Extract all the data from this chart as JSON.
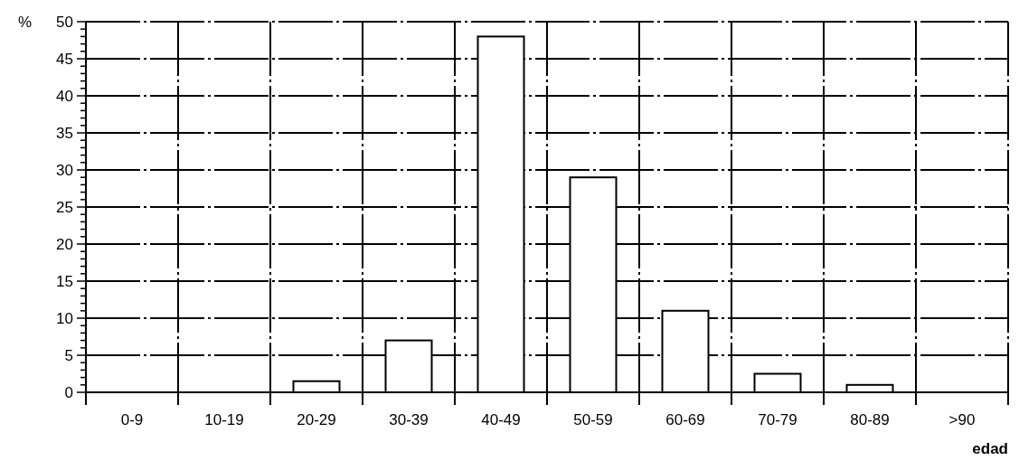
{
  "chart_data": {
    "type": "bar",
    "xlabel": "edad",
    "ylabel": "%",
    "categories": [
      "0-9",
      "10-19",
      "20-29",
      "30-39",
      "40-49",
      "50-59",
      "60-69",
      "70-79",
      "80-89",
      ">90"
    ],
    "values": [
      0,
      0,
      1.5,
      7,
      48,
      29,
      11,
      2.5,
      1,
      0
    ],
    "color": "#ffffff",
    "ylim": [
      0,
      50
    ],
    "yticks": [
      0,
      {
        "value": 1,
        "label": null
      },
      {
        "value": 2,
        "label": null
      },
      {
        "value": 3,
        "label": null
      },
      {
        "value": 4,
        "label": null
      },
      5,
      {
        "value": 6,
        "label": null
      },
      {
        "value": 7,
        "label": null
      },
      {
        "value": 8,
        "label": null
      },
      {
        "value": 9,
        "label": null
      },
      10,
      {
        "value": 11,
        "label": null
      },
      {
        "value": 12,
        "label": null
      },
      {
        "value": 13,
        "label": null
      },
      {
        "value": 14,
        "label": null
      },
      15,
      {
        "value": 16,
        "label": null
      },
      {
        "value": 17,
        "label": null
      },
      {
        "value": 18,
        "label": null
      },
      {
        "value": 19,
        "label": null
      },
      20,
      {
        "value": 21,
        "label": null
      },
      {
        "value": 22,
        "label": null
      },
      {
        "value": 23,
        "label": null
      },
      {
        "value": 24,
        "label": null
      },
      25,
      {
        "value": 26,
        "label": null
      },
      {
        "value": 27,
        "label": null
      },
      {
        "value": 28,
        "label": null
      },
      {
        "value": 29,
        "label": null
      },
      30,
      {
        "value": 31,
        "label": null
      },
      {
        "value": 32,
        "label": null
      },
      {
        "value": 33,
        "label": null
      },
      {
        "value": 34,
        "label": null
      },
      35,
      {
        "value": 36,
        "label": null
      },
      {
        "value": 37,
        "label": null
      },
      {
        "value": 38,
        "label": null
      },
      {
        "value": 39,
        "label": null
      },
      40,
      {
        "value": 41,
        "label": null
      },
      {
        "value": 42,
        "label": null
      },
      {
        "value": 43,
        "label": null
      },
      {
        "value": 44,
        "label": null
      },
      45,
      {
        "value": 46,
        "label": null
      },
      {
        "value": 47,
        "label": null
      },
      {
        "value": 48,
        "label": null
      },
      {
        "value": 49,
        "label": null
      },
      50
    ],
    "grid": true
  }
}
